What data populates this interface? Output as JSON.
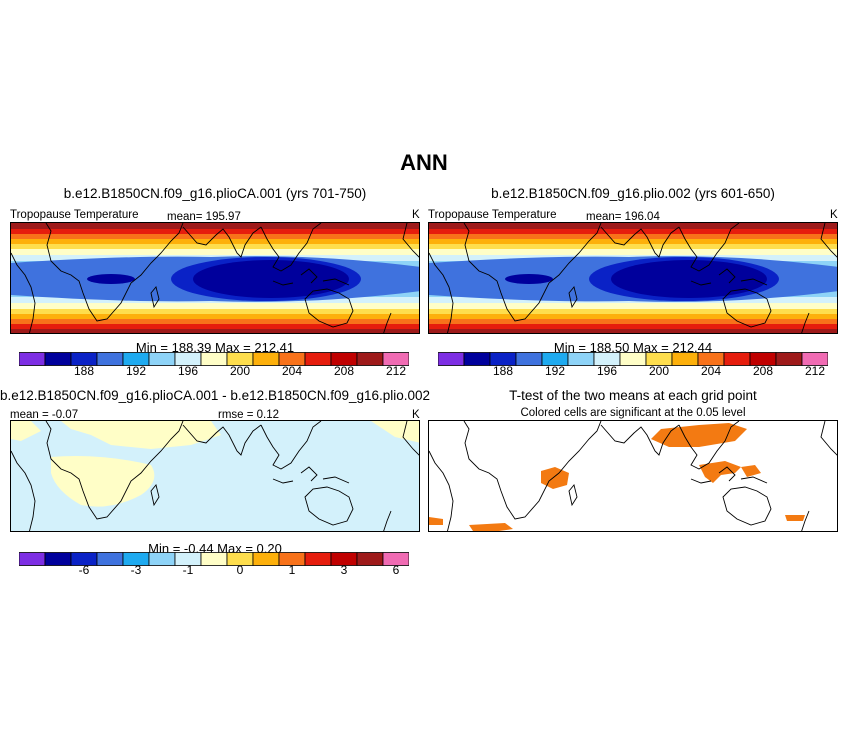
{
  "main_title": "ANN",
  "colors": {
    "scale11": [
      "#7d2ee3",
      "#00009c",
      "#0a22c6",
      "#3f72de",
      "#1eaaf0",
      "#8ed3f7",
      "#d3f1fb",
      "#fffec7",
      "#fede4d",
      "#fdb00b",
      "#f8721a",
      "#e61d0d",
      "#c00000",
      "#9e1a1a",
      "#f06bb3"
    ],
    "significant": "#f37a12",
    "coast": "#000000"
  },
  "panels": {
    "left": {
      "title": "b.e12.B1850CN.f09_g16.plioCA.001 (yrs 701-750)",
      "variable": "Tropopause Temperature",
      "mean": "mean= 195.97",
      "units": "K",
      "minmax": "Min = 188.39 Max = 212.41",
      "ticks": [
        "188",
        "192",
        "196",
        "200",
        "204",
        "208",
        "212"
      ]
    },
    "right": {
      "title": "b.e12.B1850CN.f09_g16.plio.002 (yrs 601-650)",
      "variable": "Tropopause Temperature",
      "mean": "mean= 196.04",
      "units": "K",
      "minmax": "Min = 188.50 Max = 212.44",
      "ticks": [
        "188",
        "192",
        "196",
        "200",
        "204",
        "208",
        "212"
      ]
    },
    "diff": {
      "title": "b.e12.B1850CN.f09_g16.plioCA.001 - b.e12.B1850CN.f09_g16.plio.002",
      "mean": "mean = -0.07",
      "rmse": "rmse = 0.12",
      "units": "K",
      "minmax": "Min = -0.44 Max = 0.20",
      "ticks": [
        "-6",
        "-3",
        "-1",
        "0",
        "1",
        "3",
        "6"
      ]
    },
    "ttest": {
      "title": "T-test of the two means at each grid point",
      "subtitle": "Colored cells are significant at the 0.05 level"
    }
  }
}
